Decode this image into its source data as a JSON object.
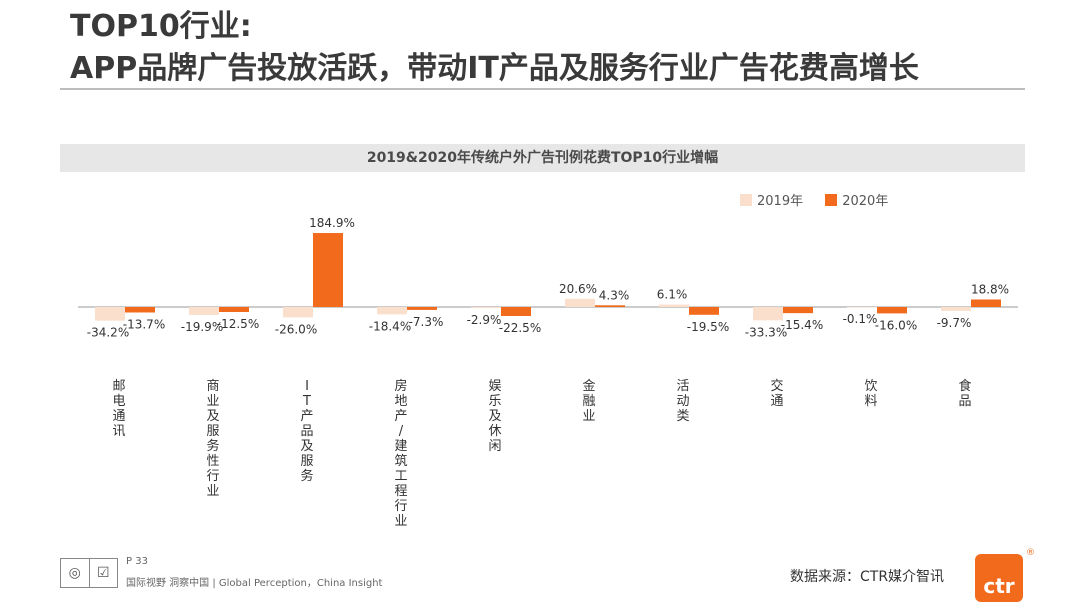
{
  "header": {
    "title_line1": "TOP10行业:",
    "title_line2": "APP品牌广告投放活跃，带动IT产品及服务行业广告花费高增长"
  },
  "colors": {
    "s2019": "#fbdfcd",
    "s2020": "#f26b1d",
    "axis": "#999999",
    "band": "#e7e7e7"
  },
  "chart_data": {
    "type": "bar",
    "title": "2019&2020年传统户外广告刊例花费TOP10行业增幅",
    "categories": [
      "邮电通讯",
      "商业及服务性行业",
      "IT产品及服务",
      "房地产/建筑工程行业",
      "娱乐及休闲",
      "金融业",
      "活动类",
      "交通",
      "饮料",
      "食品"
    ],
    "category_labels": [
      "邮电通讯",
      "商业及服务性行业",
      "IT产品及服务",
      "房地产/建筑工程行业",
      "娱乐及休闲",
      "金融业",
      "活动类",
      "交通",
      "饮料",
      "食品"
    ],
    "series": [
      {
        "name": "2019年",
        "values": [
          -34.2,
          -19.9,
          -26.0,
          -18.4,
          -2.9,
          20.6,
          6.1,
          -33.3,
          -0.1,
          -9.7
        ],
        "labels": [
          "-34.2%",
          "-19.9%",
          "-26.0%",
          "-18.4%",
          "-2.9%",
          "20.6%",
          "6.1%",
          "-33.3%",
          "-0.1%",
          "-9.7%"
        ]
      },
      {
        "name": "2020年",
        "values": [
          -13.7,
          -12.5,
          184.9,
          -7.3,
          -22.5,
          4.3,
          -19.5,
          -15.4,
          -16.0,
          18.8
        ],
        "labels": [
          "-13.7%",
          "-12.5%",
          "184.9%",
          "-7.3%",
          "-22.5%",
          "4.3%",
          "-19.5%",
          "-15.4%",
          "-16.0%",
          "18.8%"
        ]
      }
    ],
    "unit": "%",
    "legend": "top-right",
    "grid": false
  },
  "footer": {
    "page": "P 33",
    "slogan": "国际视野 洞察中国 | Global Perception，China Insight",
    "source": "数据来源：CTR媒介智讯",
    "brand": "ctr",
    "reg_mark": "®"
  }
}
